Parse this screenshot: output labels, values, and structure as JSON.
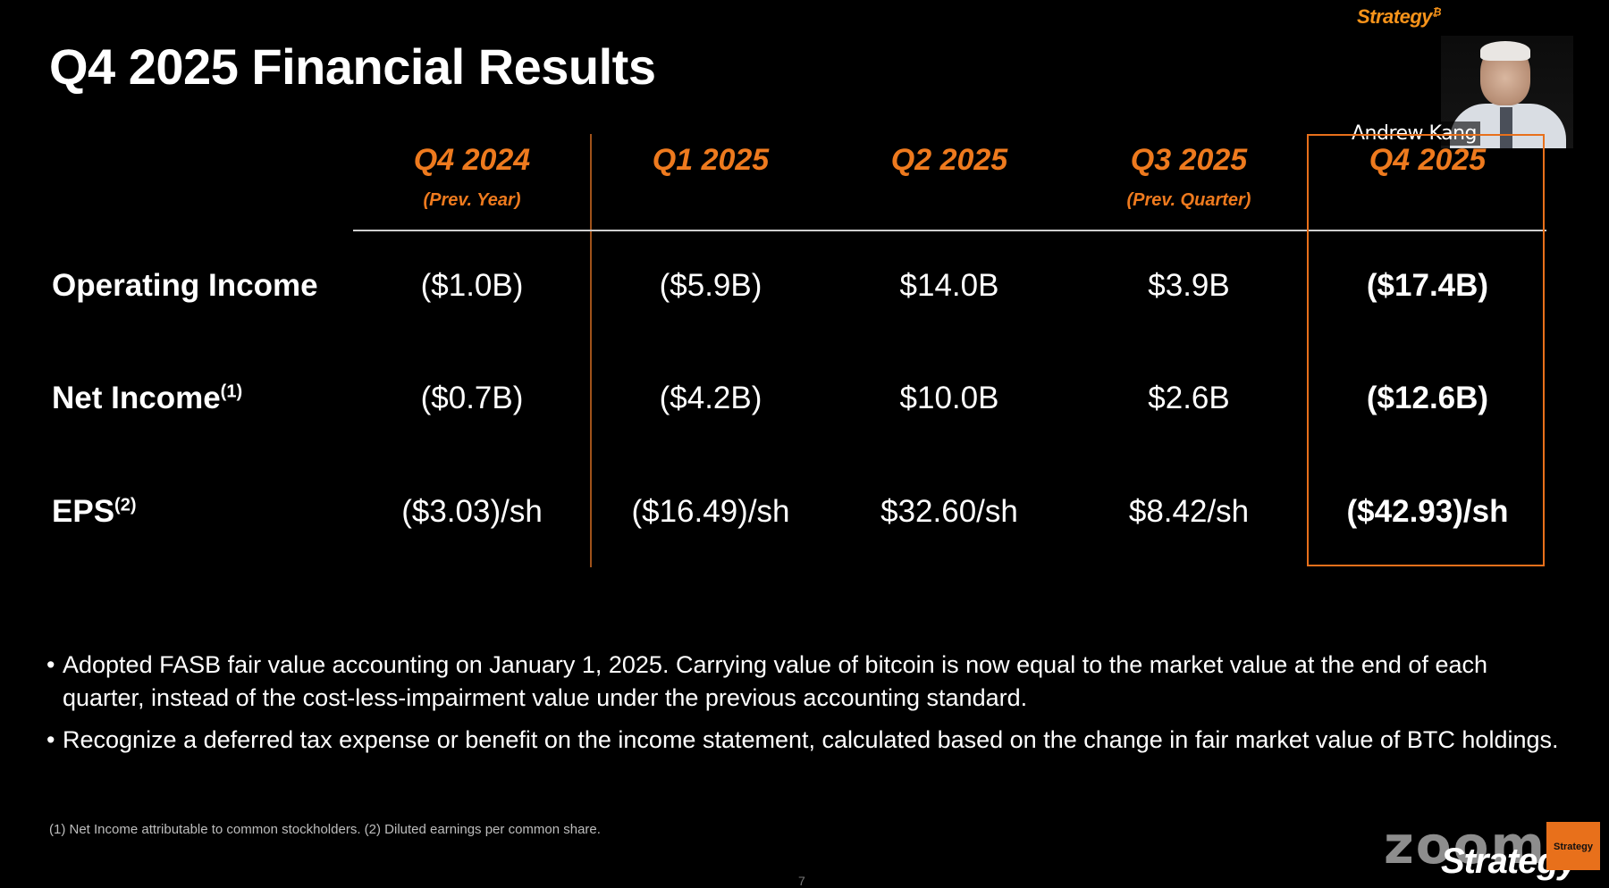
{
  "slide": {
    "title": "Q4 2025 Financial Results",
    "brand": "Strategy",
    "brand_mark": "₿",
    "speaker_name": "Andrew Kang",
    "columns": [
      {
        "quarter": "Q4 2024",
        "sub": "(Prev. Year)"
      },
      {
        "quarter": "Q1 2025",
        "sub": ""
      },
      {
        "quarter": "Q2 2025",
        "sub": ""
      },
      {
        "quarter": "Q3 2025",
        "sub": "(Prev. Quarter)"
      },
      {
        "quarter": "Q4 2025",
        "sub": ""
      }
    ],
    "rows": [
      {
        "label": "Operating Income",
        "note": "",
        "values": [
          "($1.0B)",
          "($5.9B)",
          "$14.0B",
          "$3.9B",
          "($17.4B)"
        ]
      },
      {
        "label": "Net Income",
        "note": "(1)",
        "values": [
          "($0.7B)",
          "($4.2B)",
          "$10.0B",
          "$2.6B",
          "($12.6B)"
        ]
      },
      {
        "label": "EPS",
        "note": "(2)",
        "values": [
          "($3.03)/sh",
          "($16.49)/sh",
          "$32.60/sh",
          "$8.42/sh",
          "($42.93)/sh"
        ]
      }
    ],
    "bullets": [
      "Adopted FASB fair value accounting on January 1, 2025. Carrying value of bitcoin is now equal to the market value at the end of each quarter, instead of the cost-less-impairment value under the previous accounting standard.",
      "Recognize a deferred tax expense or benefit on the income statement, calculated based on the change in fair market value of BTC holdings."
    ],
    "footnote": "(1) Net Income attributable to common stockholders. (2) Diluted earnings per common share.",
    "page_number": "7"
  },
  "overlay": {
    "zoom_logo": "zoom",
    "corner_brand": "Strategy",
    "tile_label": "Strategy"
  },
  "colors": {
    "background": "#000000",
    "accent_orange": "#ee7a1e",
    "text": "#ffffff"
  }
}
